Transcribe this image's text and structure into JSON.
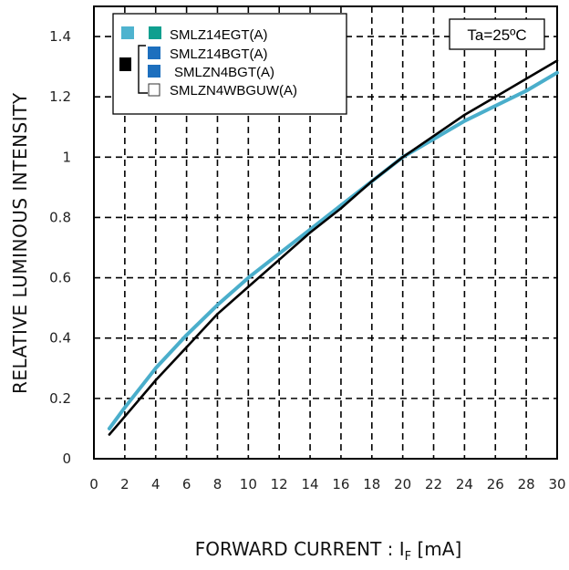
{
  "chart_data": {
    "type": "line",
    "ylabel": "RELATIVE LUMINOUS INTENSITY",
    "xlabel": {
      "main": "FORWARD CURRENT : I",
      "sub": "F",
      "unit": " [mA]"
    },
    "xlim": [
      0,
      30
    ],
    "ylim": [
      0,
      1.5
    ],
    "xticks": [
      0,
      2,
      4,
      6,
      8,
      10,
      12,
      14,
      16,
      18,
      20,
      22,
      24,
      26,
      28,
      30
    ],
    "yticks": [
      0,
      0.2,
      0.4,
      0.6,
      0.8,
      1,
      1.2,
      1.4
    ],
    "ytick_labels": [
      "0",
      "0.2",
      "0.4",
      "0.6",
      "0.8",
      "1",
      "1.2",
      "1.4"
    ],
    "grid": true,
    "annotation": "Ta=25ºC",
    "legend": {
      "position": "top-left",
      "entries": [
        {
          "label": "SMLZ14EGT(A)",
          "swatches": [
            "#4fb3cf",
            "#0f9f8f"
          ]
        },
        {
          "label": "SMLZ14BGT(A)",
          "swatches": [
            "#1d6fbe"
          ]
        },
        {
          "label": "SMLZN4BGT(A)",
          "swatches": [
            "#1d6fbe"
          ]
        },
        {
          "label": "SMLZN4WBGUW(A)",
          "swatches": [
            "#ffffff"
          ]
        }
      ],
      "group_swatch": "#000000"
    },
    "series": [
      {
        "color": "#4aaecb",
        "x": [
          1,
          2,
          4,
          6,
          8,
          10,
          12,
          14,
          16,
          18,
          20,
          22,
          24,
          26,
          28,
          30
        ],
        "y": [
          0.1,
          0.17,
          0.3,
          0.41,
          0.51,
          0.6,
          0.68,
          0.76,
          0.84,
          0.92,
          1.0,
          1.06,
          1.12,
          1.17,
          1.22,
          1.28
        ]
      },
      {
        "color": "#000000",
        "x": [
          1,
          2,
          4,
          6,
          8,
          10,
          12,
          14,
          16,
          18,
          20,
          22,
          24,
          26,
          28,
          30
        ],
        "y": [
          0.08,
          0.14,
          0.26,
          0.37,
          0.48,
          0.57,
          0.66,
          0.75,
          0.83,
          0.92,
          1.0,
          1.07,
          1.14,
          1.2,
          1.26,
          1.32
        ]
      }
    ]
  }
}
